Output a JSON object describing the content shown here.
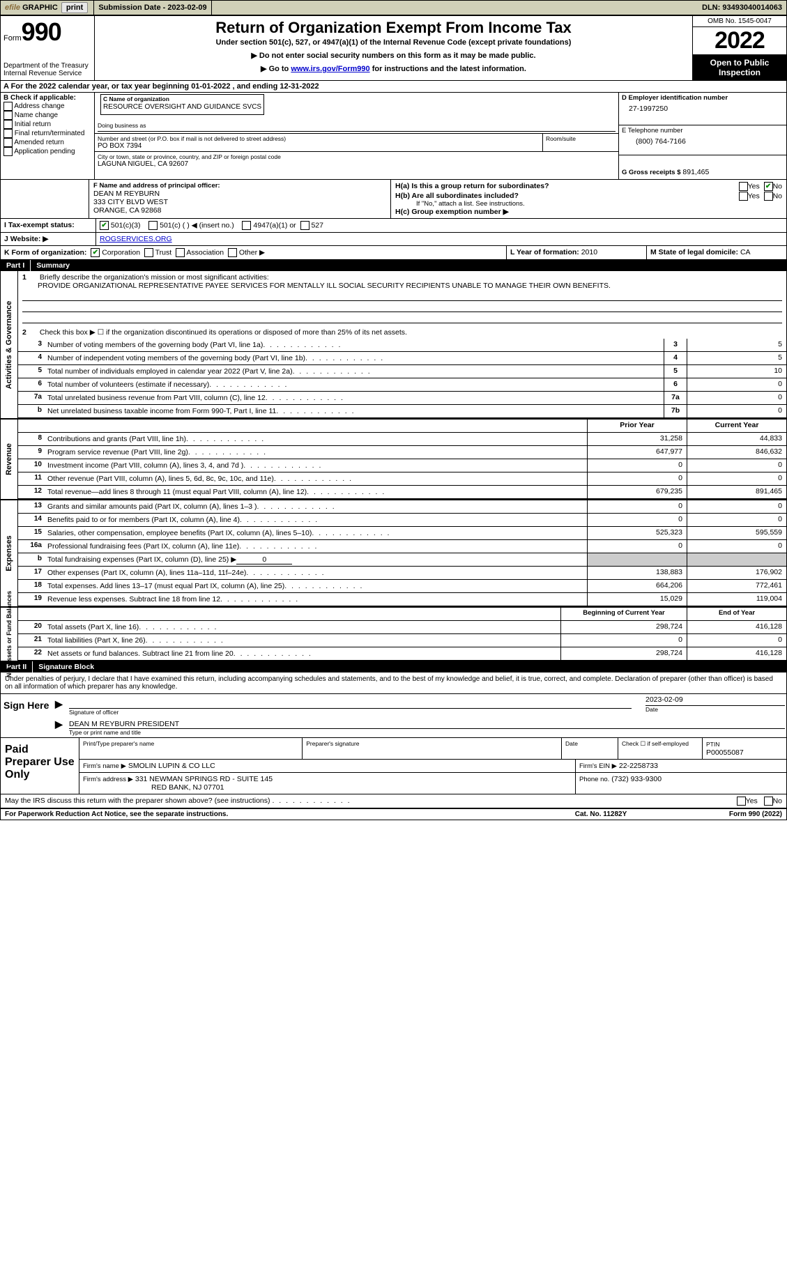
{
  "topbar": {
    "efile": "efile",
    "graphic": "GRAPHIC",
    "print": "print",
    "submission": "Submission Date - 2023-02-09",
    "dln": "DLN: 93493040014063"
  },
  "header": {
    "form_label": "Form",
    "form_no": "990",
    "dept1": "Department of the Treasury",
    "dept2": "Internal Revenue Service",
    "title": "Return of Organization Exempt From Income Tax",
    "sub1": "Under section 501(c), 527, or 4947(a)(1) of the Internal Revenue Code (except private foundations)",
    "sub2": "▶ Do not enter social security numbers on this form as it may be made public.",
    "sub3a": "▶ Go to ",
    "sub3_link": "www.irs.gov/Form990",
    "sub3b": " for instructions and the latest information.",
    "omb": "OMB No. 1545-0047",
    "year": "2022",
    "openpub": "Open to Public Inspection"
  },
  "cal_year": "A   For the 2022 calendar year, or tax year beginning 01-01-2022    , and ending 12-31-2022",
  "section_b": {
    "label": "B Check if applicable:",
    "items": [
      "Address change",
      "Name change",
      "Initial return",
      "Final return/terminated",
      "Amended return",
      "Application pending"
    ]
  },
  "section_c": {
    "name_lbl": "C Name of organization",
    "name": "RESOURCE OVERSIGHT AND GUIDANCE SVCS",
    "dba_lbl": "Doing business as",
    "addr_lbl": "Number and street (or P.O. box if mail is not delivered to street address)",
    "room_lbl": "Room/suite",
    "addr": "PO BOX 7394",
    "city_lbl": "City or town, state or province, country, and ZIP or foreign postal code",
    "city": "LAGUNA NIGUEL, CA   92607"
  },
  "section_d": {
    "lbl": "D Employer identification number",
    "val": "27-1997250"
  },
  "section_e": {
    "lbl": "E Telephone number",
    "val": "(800) 764-7166"
  },
  "section_g": {
    "lbl": "G Gross receipts $",
    "val": "891,465"
  },
  "section_f": {
    "lbl": "F  Name and address of principal officer:",
    "l1": "DEAN M REYBURN",
    "l2": "333 CITY BLVD WEST",
    "l3": "ORANGE, CA   92868"
  },
  "section_h": {
    "h_a": "H(a)  Is this a group return for subordinates?",
    "yes": "Yes",
    "no": "No",
    "h_b": "H(b)  Are all subordinates included?",
    "h_b2": "If \"No,\" attach a list. See instructions.",
    "h_c": "H(c)  Group exemption number ▶"
  },
  "section_i": {
    "lbl": "I    Tax-exempt status:",
    "o1": "501(c)(3)",
    "o2": "501(c) (  ) ◀ (insert no.)",
    "o3": "4947(a)(1) or",
    "o4": "527"
  },
  "section_j": {
    "lbl": "J    Website: ▶",
    "val": "ROGSERVICES.ORG"
  },
  "section_k": {
    "lbl": "K Form of organization:",
    "o1": "Corporation",
    "o2": "Trust",
    "o3": "Association",
    "o4": "Other ▶"
  },
  "section_l": {
    "lbl": "L Year of formation:",
    "val": "2010"
  },
  "section_m": {
    "lbl": "M State of legal domicile:",
    "val": "CA"
  },
  "part1": {
    "tab": "Part I",
    "title": "Summary",
    "q1_lbl": "1",
    "q1": "Briefly describe the organization's mission or most significant activities:",
    "q1_val": "PROVIDE ORGANIZATIONAL REPRESENTATIVE PAYEE SERVICES FOR MENTALLY ILL SOCIAL SECURITY RECIPIENTS UNABLE TO MANAGE THEIR OWN BENEFITS.",
    "q2": "Check this box ▶ ☐  if the organization discontinued its operations or disposed of more than 25% of its net assets.",
    "lines_ag": [
      {
        "n": "3",
        "t": "Number of voting members of the governing body (Part VI, line 1a)",
        "box": "3",
        "v": "5"
      },
      {
        "n": "4",
        "t": "Number of independent voting members of the governing body (Part VI, line 1b)",
        "box": "4",
        "v": "5"
      },
      {
        "n": "5",
        "t": "Total number of individuals employed in calendar year 2022 (Part V, line 2a)",
        "box": "5",
        "v": "10"
      },
      {
        "n": "6",
        "t": "Total number of volunteers (estimate if necessary)",
        "box": "6",
        "v": "0"
      },
      {
        "n": "7a",
        "t": "Total unrelated business revenue from Part VIII, column (C), line 12",
        "box": "7a",
        "v": "0"
      },
      {
        "n": "b",
        "t": "Net unrelated business taxable income from Form 990-T, Part I, line 11",
        "box": "7b",
        "v": "0"
      }
    ],
    "col_prior": "Prior Year",
    "col_curr": "Current Year",
    "revenue": [
      {
        "n": "8",
        "t": "Contributions and grants (Part VIII, line 1h)",
        "p": "31,258",
        "c": "44,833"
      },
      {
        "n": "9",
        "t": "Program service revenue (Part VIII, line 2g)",
        "p": "647,977",
        "c": "846,632"
      },
      {
        "n": "10",
        "t": "Investment income (Part VIII, column (A), lines 3, 4, and 7d )",
        "p": "0",
        "c": "0"
      },
      {
        "n": "11",
        "t": "Other revenue (Part VIII, column (A), lines 5, 6d, 8c, 9c, 10c, and 11e)",
        "p": "0",
        "c": "0"
      },
      {
        "n": "12",
        "t": "Total revenue—add lines 8 through 11 (must equal Part VIII, column (A), line 12)",
        "p": "679,235",
        "c": "891,465"
      }
    ],
    "expenses": [
      {
        "n": "13",
        "t": "Grants and similar amounts paid (Part IX, column (A), lines 1–3 )",
        "p": "0",
        "c": "0"
      },
      {
        "n": "14",
        "t": "Benefits paid to or for members (Part IX, column (A), line 4)",
        "p": "0",
        "c": "0"
      },
      {
        "n": "15",
        "t": "Salaries, other compensation, employee benefits (Part IX, column (A), lines 5–10)",
        "p": "525,323",
        "c": "595,559"
      },
      {
        "n": "16a",
        "t": "Professional fundraising fees (Part IX, column (A), line 11e)",
        "p": "0",
        "c": "0"
      }
    ],
    "line_b": {
      "n": "b",
      "t": "Total fundraising expenses (Part IX, column (D), line 25) ▶",
      "u": "0"
    },
    "expenses2": [
      {
        "n": "17",
        "t": "Other expenses (Part IX, column (A), lines 11a–11d, 11f–24e)",
        "p": "138,883",
        "c": "176,902"
      },
      {
        "n": "18",
        "t": "Total expenses. Add lines 13–17 (must equal Part IX, column (A), line 25)",
        "p": "664,206",
        "c": "772,461"
      },
      {
        "n": "19",
        "t": "Revenue less expenses. Subtract line 18 from line 12",
        "p": "15,029",
        "c": "119,004"
      }
    ],
    "col_begin": "Beginning of Current Year",
    "col_end": "End of Year",
    "netassets": [
      {
        "n": "20",
        "t": "Total assets (Part X, line 16)",
        "p": "298,724",
        "c": "416,128"
      },
      {
        "n": "21",
        "t": "Total liabilities (Part X, line 26)",
        "p": "0",
        "c": "0"
      },
      {
        "n": "22",
        "t": "Net assets or fund balances. Subtract line 21 from line 20",
        "p": "298,724",
        "c": "416,128"
      }
    ],
    "vlabels": {
      "ag": "Activities & Governance",
      "rev": "Revenue",
      "exp": "Expenses",
      "na": "Net Assets or\nFund Balances"
    }
  },
  "part2": {
    "tab": "Part II",
    "title": "Signature Block",
    "decl": "Under penalties of perjury, I declare that I have examined this return, including accompanying schedules and statements, and to the best of my knowledge and belief, it is true, correct, and complete. Declaration of preparer (other than officer) is based on all information of which preparer has any knowledge.",
    "sign_here": "Sign Here",
    "sig_officer": "Signature of officer",
    "date_lbl": "Date",
    "date_val": "2023-02-09",
    "name_val": "DEAN M REYBURN  PRESIDENT",
    "name_lbl": "Type or print name and title",
    "paid": "Paid Preparer Use Only",
    "pp_name_lbl": "Print/Type preparer's name",
    "pp_sig_lbl": "Preparer's signature",
    "pp_date_lbl": "Date",
    "pp_check": "Check ☐ if self-employed",
    "ptin_lbl": "PTIN",
    "ptin": "P00055087",
    "firm_lbl": "Firm's name    ▶",
    "firm": "SMOLIN LUPIN & CO LLC",
    "ein_lbl": "Firm's EIN ▶",
    "ein": "22-2258733",
    "firm_addr_lbl": "Firm's address ▶",
    "firm_addr1": "331 NEWMAN SPRINGS RD - SUITE 145",
    "firm_addr2": "RED BANK, NJ   07701",
    "phone_lbl": "Phone no.",
    "phone": "(732) 933-9300",
    "irs_discuss": "May the IRS discuss this return with the preparer shown above? (see instructions)",
    "yes": "Yes",
    "no": "No"
  },
  "footer": {
    "l": "For Paperwork Reduction Act Notice, see the separate instructions.",
    "m": "Cat. No. 11282Y",
    "r": "Form 990 (2022)"
  }
}
